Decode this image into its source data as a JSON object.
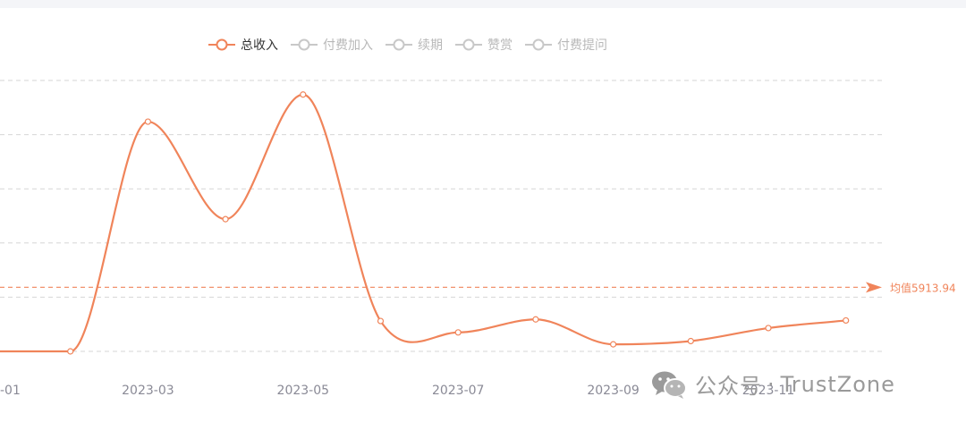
{
  "legend": [
    {
      "label": "总收入",
      "active": true
    },
    {
      "label": "付费加入",
      "active": false
    },
    {
      "label": "续期",
      "active": false
    },
    {
      "label": "赞赏",
      "active": false
    },
    {
      "label": "付费提问",
      "active": false
    }
  ],
  "watermark": {
    "brand": "公众号",
    "name": "TrustZone"
  },
  "colors": {
    "accent": "#f0845a",
    "inactive": "#c8c8c8",
    "grid": "#d6d6d6",
    "axis_text": "#8a8a96"
  },
  "chart_data": {
    "type": "line",
    "x": [
      "2023-01",
      "2023-02",
      "2023-03",
      "2023-04",
      "2023-05",
      "2023-06",
      "2023-07",
      "2023-08",
      "2023-09",
      "2023-10",
      "2023-11",
      "2023-12"
    ],
    "x_tick_labels": [
      "-01",
      "2023-03",
      "2023-05",
      "2023-07",
      "2023-09",
      "2023-11"
    ],
    "series": [
      {
        "name": "总收入",
        "values": [
          0,
          0,
          21200,
          12200,
          23700,
          2800,
          1750,
          2950,
          650,
          950,
          2150,
          2850
        ]
      }
    ],
    "ylim": [
      0,
      25000
    ],
    "y_grid": [
      5000,
      10000,
      15000,
      20000,
      25000
    ],
    "mark_line": {
      "label": "均值5913.94",
      "value": 5913.94
    },
    "smooth": true,
    "grid": true,
    "legend_position": "top"
  }
}
